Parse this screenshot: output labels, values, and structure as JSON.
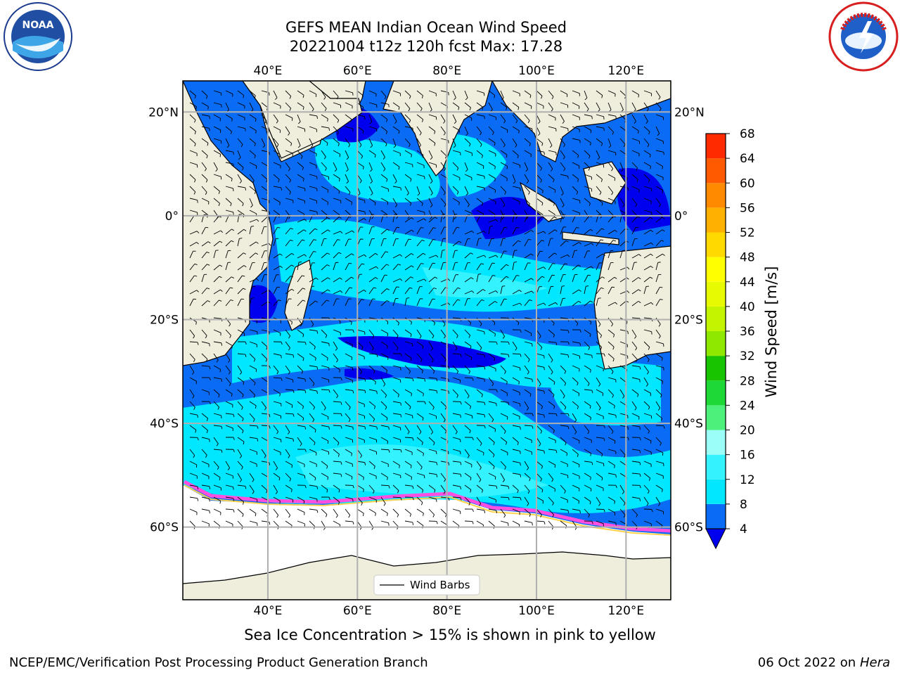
{
  "header": {
    "title_line1": "GEFS MEAN Indian Ocean Wind Speed",
    "title_line2": "20221004 t12z 120h fcst   Max: 17.28"
  },
  "logos": {
    "left": "noaa-logo",
    "right": "nws-logo",
    "left_text": "NOAA",
    "right_ring_text": "NATIONAL WEATHER SERVICE"
  },
  "map": {
    "projection": "equirectangular",
    "lon_range": [
      21,
      130
    ],
    "lat_range": [
      -74,
      26
    ],
    "lon_ticks": [
      {
        "value": 40,
        "label": "40°E"
      },
      {
        "value": 60,
        "label": "60°E"
      },
      {
        "value": 80,
        "label": "80°E"
      },
      {
        "value": 100,
        "label": "100°E"
      },
      {
        "value": 120,
        "label": "120°E"
      }
    ],
    "lat_ticks_left": [
      {
        "value": 20,
        "label": "20°N"
      },
      {
        "value": 0,
        "label": "0°"
      },
      {
        "value": -20,
        "label": "20°S"
      },
      {
        "value": -40,
        "label": "40°S"
      },
      {
        "value": -60,
        "label": "60°S"
      }
    ],
    "lat_ticks_right": [
      {
        "value": 20,
        "label": "20°N"
      },
      {
        "value": 0,
        "label": "0°"
      },
      {
        "value": -20,
        "label": "20°S"
      },
      {
        "value": -40,
        "label": "40°S"
      },
      {
        "value": -60,
        "label": "60°S"
      }
    ],
    "grid": true,
    "land_color": "#efeddc",
    "legend": {
      "label": "Wind Barbs",
      "placement": "bottom-center"
    }
  },
  "colorbar": {
    "title": "Wind Speed [m/s]",
    "ticks": [
      "4",
      "8",
      "12",
      "16",
      "20",
      "24",
      "28",
      "32",
      "36",
      "40",
      "44",
      "48",
      "52",
      "56",
      "60",
      "64",
      "68"
    ],
    "colors": [
      "#0a6cf5",
      "#00e7ff",
      "#35f2ff",
      "#9cfff7",
      "#4cf07a",
      "#1ed835",
      "#18c300",
      "#8fe800",
      "#c4f500",
      "#e8fa00",
      "#ffff00",
      "#ffd900",
      "#ffb000",
      "#ff8a00",
      "#ff5a00",
      "#ff2a00"
    ],
    "extend_color": "#0000ee"
  },
  "notes": {
    "ice": "Sea Ice Concentration > 15% is shown in pink to yellow"
  },
  "footer": {
    "left": "NCEP/EMC/Verification Post Processing Product Generation Branch",
    "date": "06 Oct 2022 on ",
    "host": "Hera"
  }
}
